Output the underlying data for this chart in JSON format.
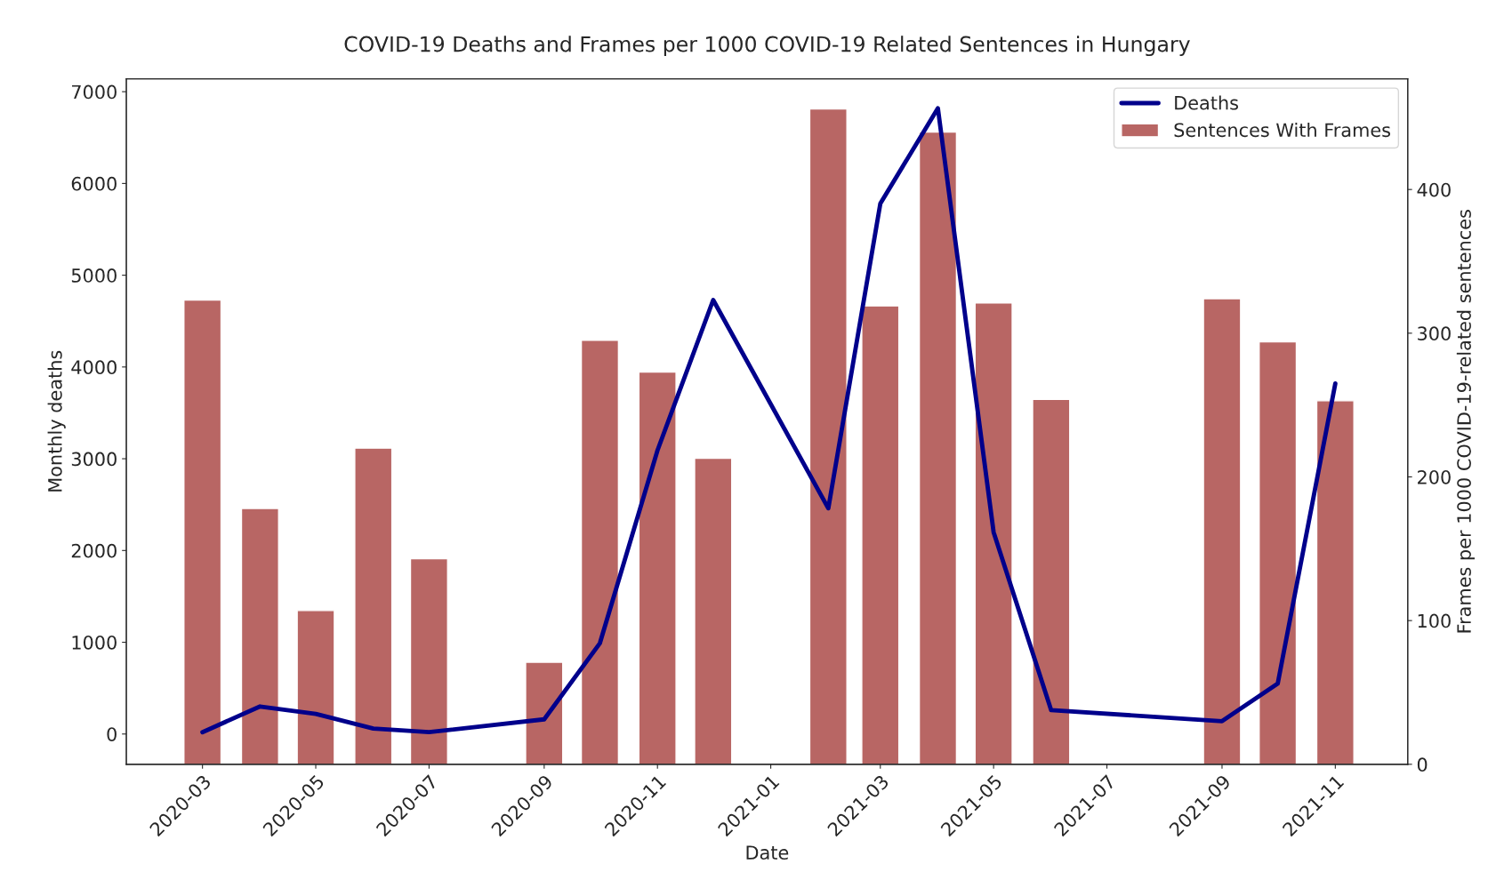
{
  "chart_data": {
    "type": "line",
    "title": "COVID-19 Deaths and Frames per 1000 COVID-19 Related Sentences in Hungary",
    "xlabel": "Date",
    "ylabel": "Monthly deaths",
    "y2label": "Frames per 1000 COVID-19-related sentences",
    "series": [
      {
        "name": "Deaths",
        "color": "#00008b",
        "x": [
          "2020-03",
          "2020-04",
          "2020-05",
          "2020-06",
          "2020-07",
          "2020-09",
          "2020-10",
          "2020-11",
          "2020-12",
          "2021-02",
          "2021-03",
          "2021-04",
          "2021-05",
          "2021-06",
          "2021-09",
          "2021-10",
          "2021-11"
        ],
        "values": [
          20,
          300,
          220,
          60,
          20,
          160,
          990,
          3090,
          4730,
          2460,
          5780,
          6820,
          2200,
          260,
          140,
          550,
          3820
        ]
      },
      {
        "name": "Sentences With Frames",
        "type": "bar",
        "axis": "y2",
        "color": "#b86664",
        "x": [
          "2020-03",
          "2020-04",
          "2020-05",
          "2020-06",
          "2020-07",
          "2020-09",
          "2020-10",
          "2020-11",
          "2020-12",
          "2021-02",
          "2021-03",
          "2021-04",
          "2021-05",
          "2021-06",
          "2021-09",
          "2021-10",
          "2021-11"
        ],
        "values": [
          323,
          178,
          107,
          220,
          143,
          71,
          295,
          273,
          213,
          456,
          319,
          440,
          321,
          254,
          324,
          294,
          253
        ]
      }
    ],
    "xlim": [
      "2020-01-20",
      "2021-12-10"
    ],
    "xticks": [
      {
        "value": "2020-03",
        "label": "2020-03"
      },
      {
        "value": "2020-05",
        "label": "2020-05"
      },
      {
        "value": "2020-07",
        "label": "2020-07"
      },
      {
        "value": "2020-09",
        "label": "2020-09"
      },
      {
        "value": "2020-11",
        "label": "2020-11"
      },
      {
        "value": "2021-01",
        "label": "2021-01"
      },
      {
        "value": "2021-03",
        "label": "2021-03"
      },
      {
        "value": "2021-05",
        "label": "2021-05"
      },
      {
        "value": "2021-07",
        "label": "2021-07"
      },
      {
        "value": "2021-09",
        "label": "2021-09"
      },
      {
        "value": "2021-11",
        "label": "2021-11"
      }
    ],
    "ylim": [
      -330,
      7140
    ],
    "yticks": [
      0,
      1000,
      2000,
      3000,
      4000,
      5000,
      6000,
      7000
    ],
    "y2lim": [
      0,
      477
    ],
    "y2ticks": [
      0,
      100,
      200,
      300,
      400
    ],
    "legend": "top right",
    "grid": false
  }
}
